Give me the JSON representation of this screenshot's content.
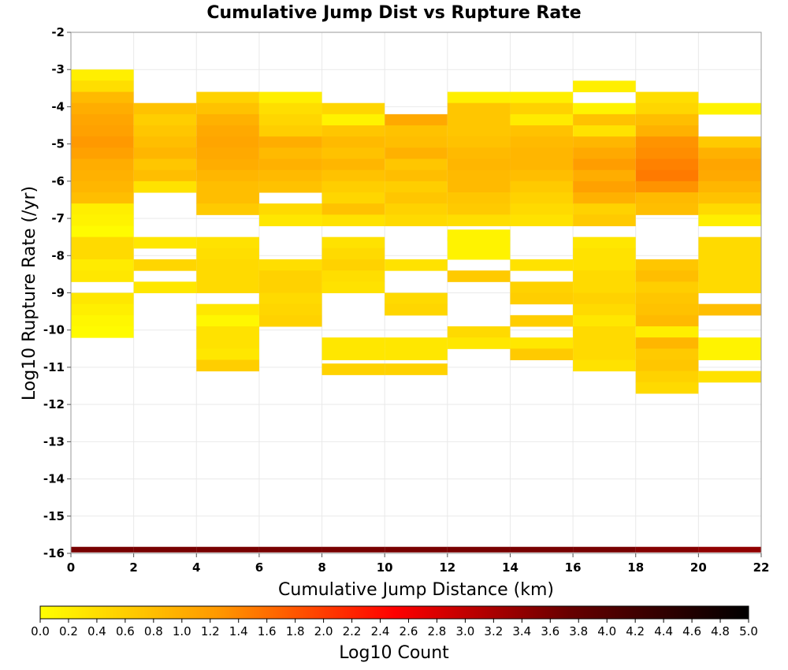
{
  "chart_data": {
    "type": "heatmap",
    "title": "Cumulative Jump Dist vs Rupture Rate",
    "xlabel": "Cumulative Jump Distance (km)",
    "ylabel": "Log10 Rupture Rate (/yr)",
    "xlim": [
      0,
      22
    ],
    "ylim": [
      -16,
      -2
    ],
    "x_ticks": [
      0,
      2,
      4,
      6,
      8,
      10,
      12,
      14,
      16,
      18,
      20,
      22
    ],
    "y_ticks": [
      -2,
      -3,
      -4,
      -5,
      -6,
      -7,
      -8,
      -9,
      -10,
      -11,
      -12,
      -13,
      -14,
      -15,
      -16
    ],
    "x_bin_width": 2,
    "y_bin_height": 0.3,
    "grid": true,
    "colorbar": {
      "label": "Log10 Count",
      "range": [
        0,
        5
      ],
      "ticks": [
        "0.0",
        "0.2",
        "0.4",
        "0.6",
        "0.8",
        "1.0",
        "1.2",
        "1.4",
        "1.6",
        "1.8",
        "2.0",
        "2.2",
        "2.4",
        "2.6",
        "2.8",
        "3.0",
        "3.2",
        "3.4",
        "3.6",
        "3.8",
        "4.0",
        "4.2",
        "4.4",
        "4.6",
        "4.8",
        "5.0"
      ],
      "colors": [
        "#ffff00",
        "#ff9900",
        "#ff0000",
        "#660000",
        "#000000"
      ]
    },
    "columns": [
      {
        "x": 0,
        "cells": [
          [
            -3.15,
            0.2
          ],
          [
            -3.45,
            0.4
          ],
          [
            -3.75,
            0.85
          ],
          [
            -4.05,
            1.0
          ],
          [
            -4.35,
            1.1
          ],
          [
            -4.65,
            1.15
          ],
          [
            -4.95,
            1.25
          ],
          [
            -5.25,
            1.15
          ],
          [
            -5.55,
            1.0
          ],
          [
            -5.85,
            0.95
          ],
          [
            -6.15,
            0.9
          ],
          [
            -6.45,
            0.8
          ],
          [
            -6.75,
            0.2
          ],
          [
            -7.05,
            0.15
          ],
          [
            -7.35,
            0.05
          ],
          [
            -7.65,
            0.45
          ],
          [
            -7.95,
            0.45
          ],
          [
            -8.25,
            0.25
          ],
          [
            -8.55,
            0.3
          ],
          [
            -9.15,
            0.3
          ],
          [
            -9.45,
            0.2
          ],
          [
            -9.75,
            0.1
          ],
          [
            -10.05,
            0.05
          ]
        ]
      },
      {
        "x": 2,
        "cells": [
          [
            -4.05,
            0.75
          ],
          [
            -4.35,
            0.6
          ],
          [
            -4.65,
            0.7
          ],
          [
            -4.95,
            0.8
          ],
          [
            -5.25,
            0.9
          ],
          [
            -5.55,
            0.7
          ],
          [
            -5.85,
            0.8
          ],
          [
            -6.15,
            0.35
          ],
          [
            -7.65,
            0.3
          ],
          [
            -8.25,
            0.5
          ],
          [
            -8.85,
            0.3
          ]
        ]
      },
      {
        "x": 4,
        "cells": [
          [
            -3.75,
            0.55
          ],
          [
            -4.05,
            0.75
          ],
          [
            -4.35,
            0.95
          ],
          [
            -4.65,
            1.05
          ],
          [
            -4.95,
            1.1
          ],
          [
            -5.25,
            1.05
          ],
          [
            -5.55,
            1.0
          ],
          [
            -5.85,
            0.9
          ],
          [
            -6.15,
            0.8
          ],
          [
            -6.45,
            0.8
          ],
          [
            -6.75,
            0.65
          ],
          [
            -7.65,
            0.35
          ],
          [
            -7.95,
            0.4
          ],
          [
            -8.25,
            0.45
          ],
          [
            -8.55,
            0.45
          ],
          [
            -8.85,
            0.45
          ],
          [
            -9.45,
            0.3
          ],
          [
            -9.75,
            0.1
          ],
          [
            -10.05,
            0.35
          ],
          [
            -10.35,
            0.35
          ],
          [
            -10.65,
            0.3
          ],
          [
            -10.95,
            0.6
          ]
        ]
      },
      {
        "x": 6,
        "cells": [
          [
            -3.75,
            0.2
          ],
          [
            -4.05,
            0.4
          ],
          [
            -4.35,
            0.5
          ],
          [
            -4.65,
            0.6
          ],
          [
            -4.95,
            1.0
          ],
          [
            -5.25,
            0.85
          ],
          [
            -5.55,
            0.95
          ],
          [
            -5.85,
            0.85
          ],
          [
            -6.15,
            0.75
          ],
          [
            -6.75,
            0.45
          ],
          [
            -7.05,
            0.3
          ],
          [
            -8.25,
            0.4
          ],
          [
            -8.55,
            0.55
          ],
          [
            -8.85,
            0.55
          ],
          [
            -9.15,
            0.45
          ],
          [
            -9.45,
            0.5
          ],
          [
            -9.75,
            0.55
          ]
        ]
      },
      {
        "x": 8,
        "cells": [
          [
            -4.05,
            0.5
          ],
          [
            -4.35,
            0.15
          ],
          [
            -4.65,
            0.7
          ],
          [
            -4.95,
            0.85
          ],
          [
            -5.25,
            0.75
          ],
          [
            -5.55,
            0.9
          ],
          [
            -5.85,
            0.75
          ],
          [
            -6.15,
            0.6
          ],
          [
            -6.45,
            0.5
          ],
          [
            -6.75,
            0.75
          ],
          [
            -7.05,
            0.35
          ],
          [
            -7.65,
            0.35
          ],
          [
            -7.95,
            0.45
          ],
          [
            -8.25,
            0.55
          ],
          [
            -8.55,
            0.4
          ],
          [
            -8.85,
            0.35
          ],
          [
            -10.35,
            0.3
          ],
          [
            -10.65,
            0.3
          ],
          [
            -11.05,
            0.55
          ]
        ]
      },
      {
        "x": 10,
        "cells": [
          [
            -4.35,
            1.05
          ],
          [
            -4.65,
            0.75
          ],
          [
            -4.95,
            0.8
          ],
          [
            -5.25,
            0.95
          ],
          [
            -5.55,
            0.7
          ],
          [
            -5.85,
            0.8
          ],
          [
            -6.15,
            0.6
          ],
          [
            -6.45,
            0.7
          ],
          [
            -6.75,
            0.55
          ],
          [
            -7.05,
            0.45
          ],
          [
            -8.25,
            0.35
          ],
          [
            -9.15,
            0.45
          ],
          [
            -9.45,
            0.5
          ],
          [
            -10.35,
            0.3
          ],
          [
            -10.65,
            0.3
          ],
          [
            -11.05,
            0.55
          ]
        ]
      },
      {
        "x": 12,
        "cells": [
          [
            -3.75,
            0.2
          ],
          [
            -4.05,
            0.7
          ],
          [
            -4.35,
            0.7
          ],
          [
            -4.65,
            0.7
          ],
          [
            -4.95,
            0.75
          ],
          [
            -5.25,
            0.85
          ],
          [
            -5.55,
            0.9
          ],
          [
            -5.85,
            0.85
          ],
          [
            -6.15,
            0.85
          ],
          [
            -6.45,
            0.7
          ],
          [
            -6.75,
            0.65
          ],
          [
            -7.05,
            0.4
          ],
          [
            -7.45,
            0.15
          ],
          [
            -7.65,
            0.15
          ],
          [
            -7.95,
            0.15
          ],
          [
            -8.55,
            0.65
          ],
          [
            -10.05,
            0.45
          ],
          [
            -10.35,
            0.3
          ]
        ]
      },
      {
        "x": 14,
        "cells": [
          [
            -3.75,
            0.2
          ],
          [
            -4.05,
            0.55
          ],
          [
            -4.35,
            0.25
          ],
          [
            -4.65,
            0.75
          ],
          [
            -4.95,
            0.85
          ],
          [
            -5.25,
            0.9
          ],
          [
            -5.55,
            0.9
          ],
          [
            -5.85,
            0.8
          ],
          [
            -6.15,
            0.65
          ],
          [
            -6.45,
            0.55
          ],
          [
            -6.75,
            0.45
          ],
          [
            -7.05,
            0.35
          ],
          [
            -8.25,
            0.35
          ],
          [
            -8.85,
            0.55
          ],
          [
            -9.15,
            0.6
          ],
          [
            -9.75,
            0.6
          ],
          [
            -10.35,
            0.3
          ],
          [
            -10.65,
            0.65
          ]
        ]
      },
      {
        "x": 16,
        "cells": [
          [
            -3.45,
            0.2
          ],
          [
            -4.05,
            0.15
          ],
          [
            -4.35,
            0.75
          ],
          [
            -4.65,
            0.35
          ],
          [
            -4.95,
            0.9
          ],
          [
            -5.25,
            1.05
          ],
          [
            -5.55,
            1.2
          ],
          [
            -5.85,
            1.0
          ],
          [
            -6.15,
            1.15
          ],
          [
            -6.45,
            0.95
          ],
          [
            -6.75,
            0.55
          ],
          [
            -7.05,
            0.65
          ],
          [
            -7.65,
            0.3
          ],
          [
            -7.95,
            0.35
          ],
          [
            -8.25,
            0.35
          ],
          [
            -8.55,
            0.45
          ],
          [
            -8.85,
            0.45
          ],
          [
            -9.15,
            0.55
          ],
          [
            -9.45,
            0.45
          ],
          [
            -9.75,
            0.3
          ],
          [
            -10.05,
            0.45
          ],
          [
            -10.35,
            0.45
          ],
          [
            -10.65,
            0.45
          ],
          [
            -10.95,
            0.35
          ]
        ]
      },
      {
        "x": 18,
        "cells": [
          [
            -3.75,
            0.4
          ],
          [
            -4.05,
            0.5
          ],
          [
            -4.35,
            0.8
          ],
          [
            -4.65,
            0.95
          ],
          [
            -4.95,
            1.3
          ],
          [
            -5.25,
            1.35
          ],
          [
            -5.55,
            1.45
          ],
          [
            -5.85,
            1.5
          ],
          [
            -6.15,
            1.3
          ],
          [
            -6.45,
            0.85
          ],
          [
            -6.75,
            0.8
          ],
          [
            -8.25,
            0.7
          ],
          [
            -8.55,
            0.8
          ],
          [
            -8.85,
            0.6
          ],
          [
            -9.15,
            0.7
          ],
          [
            -9.45,
            0.75
          ],
          [
            -9.75,
            0.85
          ],
          [
            -10.05,
            0.2
          ],
          [
            -10.35,
            0.9
          ],
          [
            -10.65,
            0.65
          ],
          [
            -10.95,
            0.7
          ],
          [
            -11.25,
            0.55
          ],
          [
            -11.55,
            0.45
          ]
        ]
      },
      {
        "x": 20,
        "cells": [
          [
            -4.05,
            0.15
          ],
          [
            -4.95,
            0.65
          ],
          [
            -5.25,
            0.95
          ],
          [
            -5.55,
            1.1
          ],
          [
            -5.85,
            1.05
          ],
          [
            -6.15,
            0.9
          ],
          [
            -6.45,
            0.75
          ],
          [
            -6.75,
            0.45
          ],
          [
            -7.05,
            0.2
          ],
          [
            -7.65,
            0.45
          ],
          [
            -7.95,
            0.45
          ],
          [
            -8.25,
            0.45
          ],
          [
            -8.55,
            0.45
          ],
          [
            -8.85,
            0.45
          ],
          [
            -9.45,
            0.8
          ],
          [
            -10.35,
            0.15
          ],
          [
            -10.65,
            0.15
          ],
          [
            -11.25,
            0.35
          ]
        ]
      }
    ],
    "bottom_row": {
      "y": -15.9,
      "values": [
        3.6,
        3.6,
        3.6,
        3.6,
        3.6,
        3.6,
        3.6,
        3.6,
        3.6,
        3.5,
        3.4
      ]
    }
  }
}
